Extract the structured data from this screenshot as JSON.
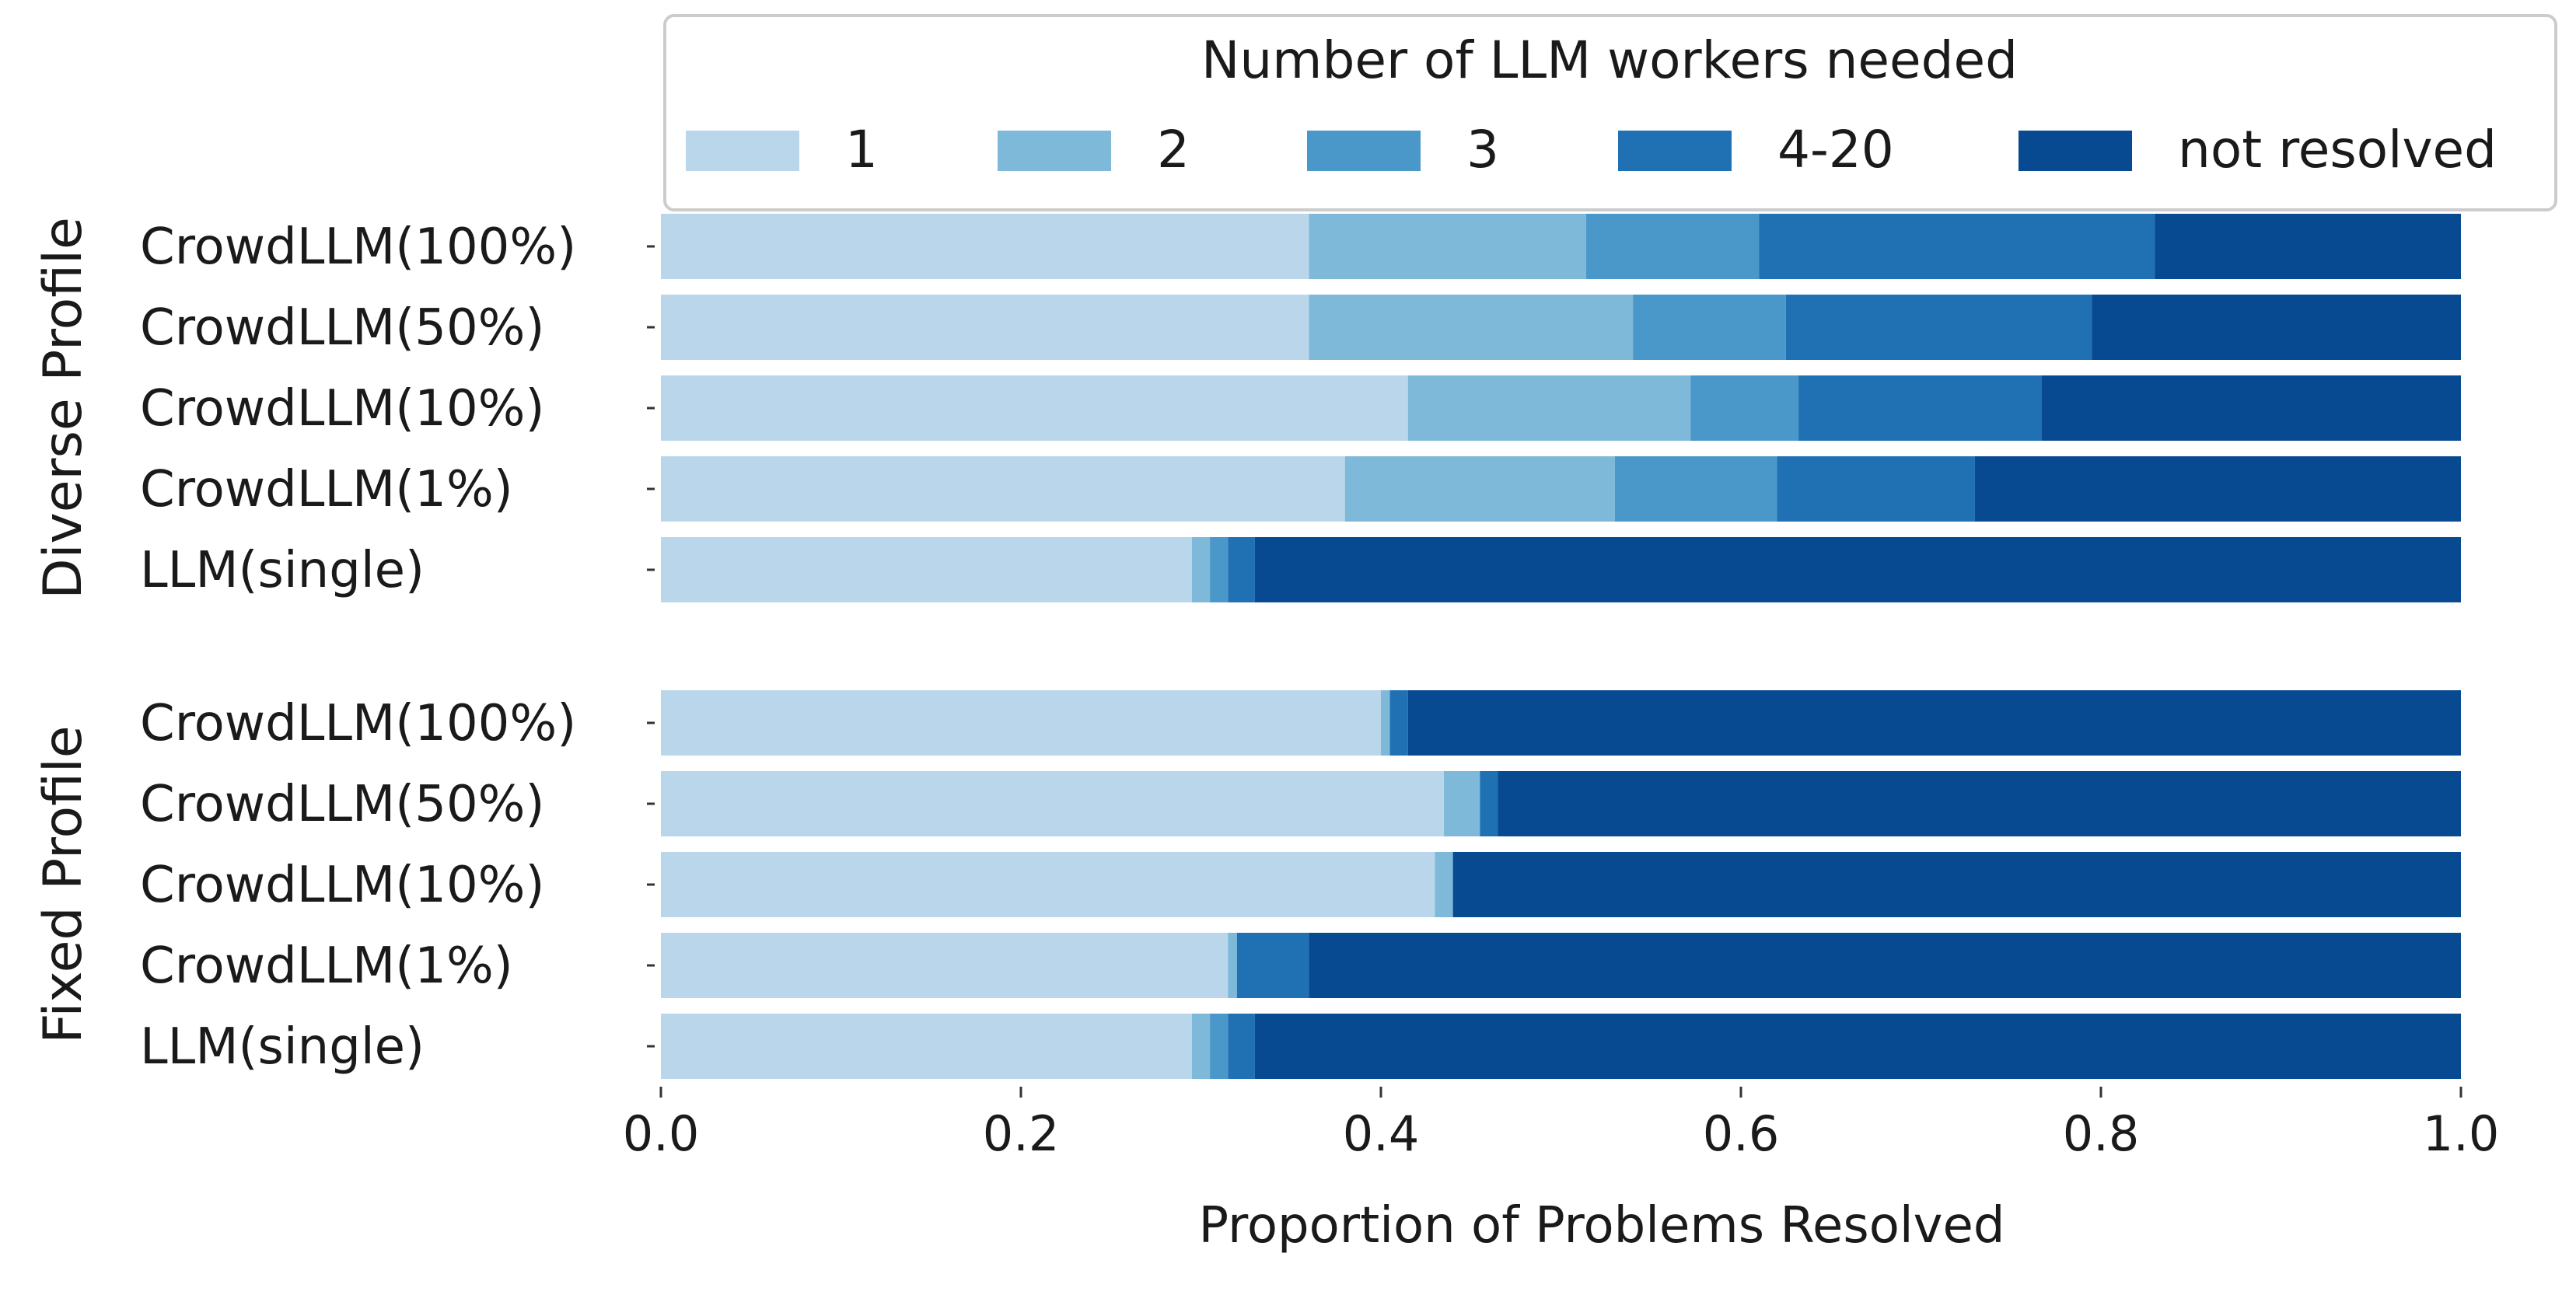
{
  "chart_data": {
    "type": "bar",
    "orientation": "horizontal",
    "stacked": true,
    "xlabel": "Proportion of Problems Resolved",
    "xlim": [
      0,
      1
    ],
    "xticks": [
      "0.0",
      "0.2",
      "0.4",
      "0.6",
      "0.8",
      "1.0"
    ],
    "legend": {
      "title": "Number of LLM workers needed",
      "position": "top-right",
      "entries": [
        "1",
        "2",
        "3",
        "4-20",
        "not resolved"
      ]
    },
    "colors": [
      "#bad6eb",
      "#7fb9da",
      "#4a98c9",
      "#2070b4",
      "#084a91"
    ],
    "groups": [
      {
        "label": "Diverse Profile",
        "categories": [
          "CrowdLLM(100%)",
          "CrowdLLM(50%)",
          "CrowdLLM(10%)",
          "CrowdLLM(1%)",
          "LLM(single)"
        ],
        "values": [
          [
            0.36,
            0.154,
            0.096,
            0.22,
            0.17
          ],
          [
            0.36,
            0.18,
            0.085,
            0.17,
            0.205
          ],
          [
            0.415,
            0.157,
            0.06,
            0.135,
            0.233
          ],
          [
            0.38,
            0.15,
            0.09,
            0.11,
            0.27
          ],
          [
            0.295,
            0.01,
            0.01,
            0.015,
            0.67
          ]
        ]
      },
      {
        "label": "Fixed Profile",
        "categories": [
          "CrowdLLM(100%)",
          "CrowdLLM(50%)",
          "CrowdLLM(10%)",
          "CrowdLLM(1%)",
          "LLM(single)"
        ],
        "values": [
          [
            0.4,
            0.005,
            0.0,
            0.01,
            0.585
          ],
          [
            0.435,
            0.02,
            0.0,
            0.01,
            0.535
          ],
          [
            0.43,
            0.01,
            0.0,
            0.0,
            0.56
          ],
          [
            0.315,
            0.005,
            0.0,
            0.04,
            0.64
          ],
          [
            0.295,
            0.01,
            0.01,
            0.015,
            0.67
          ]
        ]
      }
    ]
  }
}
